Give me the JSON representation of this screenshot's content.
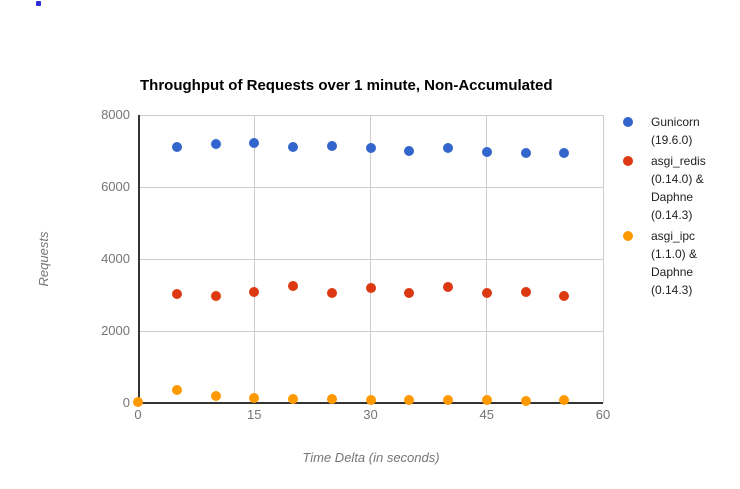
{
  "theme": {
    "background": "#ffffff",
    "grid_color": "#cccccc",
    "axis_color": "#333333",
    "tick_label_color": "#757575",
    "axis_title_color": "#757575",
    "title_color": "#000000",
    "legend_text_color": "#222222",
    "stray_dot_color": "#2b2bd8"
  },
  "chart_data": {
    "type": "scatter",
    "title": "Throughput of Requests over 1 minute, Non-Accumulated",
    "xlabel": "Time Delta (in seconds)",
    "ylabel": "Requests",
    "xlim": [
      0,
      60
    ],
    "ylim": [
      0,
      8000
    ],
    "x_ticks": [
      0,
      15,
      30,
      45,
      60
    ],
    "y_ticks": [
      0,
      2000,
      4000,
      6000,
      8000
    ],
    "grid": true,
    "legend_position": "right",
    "series": [
      {
        "name": "Gunicorn (19.6.0)",
        "legend_lines": [
          "Gunicorn",
          "(19.6.0)"
        ],
        "color": "#3366CC",
        "x": [
          5,
          10,
          15,
          20,
          25,
          30,
          35,
          40,
          45,
          50,
          55
        ],
        "y": [
          7110,
          7190,
          7220,
          7110,
          7140,
          7090,
          7010,
          7090,
          6980,
          6950,
          6940
        ]
      },
      {
        "name": "asgi_redis (0.14.0) & Daphne (0.14.3)",
        "legend_lines": [
          "asgi_redis",
          "(0.14.0) &",
          "Daphne",
          "(0.14.3)"
        ],
        "color": "#DC3912",
        "x": [
          5,
          10,
          15,
          20,
          25,
          30,
          35,
          40,
          45,
          50,
          55
        ],
        "y": [
          3030,
          2970,
          3080,
          3250,
          3060,
          3200,
          3060,
          3210,
          3060,
          3080,
          2970
        ]
      },
      {
        "name": "asgi_ipc (1.1.0) & Daphne (0.14.3)",
        "legend_lines": [
          "asgi_ipc",
          "(1.1.0) &",
          "Daphne",
          "(0.14.3)"
        ],
        "color": "#FF9900",
        "x": [
          0,
          5,
          10,
          15,
          20,
          25,
          30,
          35,
          40,
          45,
          50,
          55
        ],
        "y": [
          20,
          360,
          195,
          140,
          110,
          105,
          90,
          85,
          90,
          85,
          60,
          80
        ]
      }
    ]
  }
}
